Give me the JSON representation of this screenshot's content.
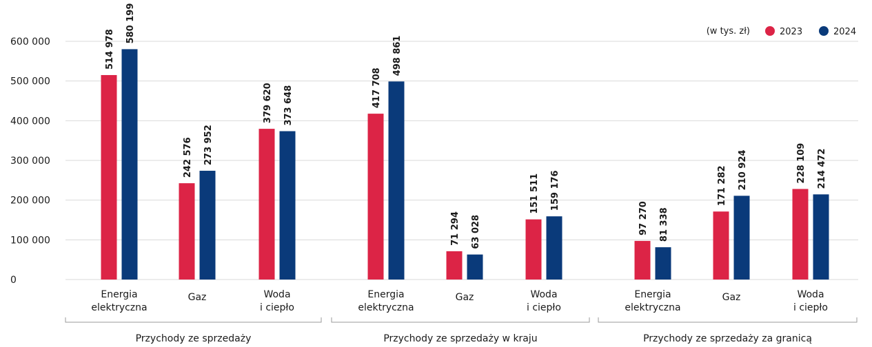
{
  "chart_data": {
    "type": "bar",
    "unit_note": "(w tys. zł)",
    "ylim": [
      0,
      620000
    ],
    "yticks": [
      {
        "value": 0,
        "label": "0"
      },
      {
        "value": 100000,
        "label": "100 000"
      },
      {
        "value": 200000,
        "label": "200 000"
      },
      {
        "value": 300000,
        "label": "300 000"
      },
      {
        "value": 400000,
        "label": "400 000"
      },
      {
        "value": 500000,
        "label": "500 000"
      },
      {
        "value": 600000,
        "label": "600 000"
      }
    ],
    "legend": [
      {
        "name": "2023",
        "color": "#dc2446"
      },
      {
        "name": "2024",
        "color": "#0a3a7a"
      }
    ],
    "groups": [
      {
        "label": "Przychody ze sprzedaży",
        "categories": [
          {
            "label": [
              "Energia",
              "elektryczna"
            ],
            "values": [
              514978,
              580199
            ],
            "value_labels": [
              "514 978",
              "580 199"
            ]
          },
          {
            "label": [
              "Gaz"
            ],
            "values": [
              242576,
              273952
            ],
            "value_labels": [
              "242 576",
              "273 952"
            ]
          },
          {
            "label": [
              "Woda",
              "i ciepło"
            ],
            "values": [
              379620,
              373648
            ],
            "value_labels": [
              "379 620",
              "373 648"
            ]
          }
        ]
      },
      {
        "label": "Przychody ze sprzedaży w kraju",
        "categories": [
          {
            "label": [
              "Energia",
              "elektryczna"
            ],
            "values": [
              417708,
              498861
            ],
            "value_labels": [
              "417 708",
              "498 861"
            ]
          },
          {
            "label": [
              "Gaz"
            ],
            "values": [
              71294,
              63028
            ],
            "value_labels": [
              "71 294",
              "63 028"
            ]
          },
          {
            "label": [
              "Woda",
              "i ciepło"
            ],
            "values": [
              151511,
              159176
            ],
            "value_labels": [
              "151 511",
              "159 176"
            ]
          }
        ]
      },
      {
        "label": "Przychody ze sprzedaży za granicą",
        "categories": [
          {
            "label": [
              "Energia",
              "elektryczna"
            ],
            "values": [
              97270,
              81338
            ],
            "value_labels": [
              "97 270",
              "81 338"
            ]
          },
          {
            "label": [
              "Gaz"
            ],
            "values": [
              171282,
              210924
            ],
            "value_labels": [
              "171 282",
              "210 924"
            ]
          },
          {
            "label": [
              "Woda",
              "i ciepło"
            ],
            "values": [
              228109,
              214472
            ],
            "value_labels": [
              "228 109",
              "214 472"
            ]
          }
        ]
      }
    ]
  }
}
